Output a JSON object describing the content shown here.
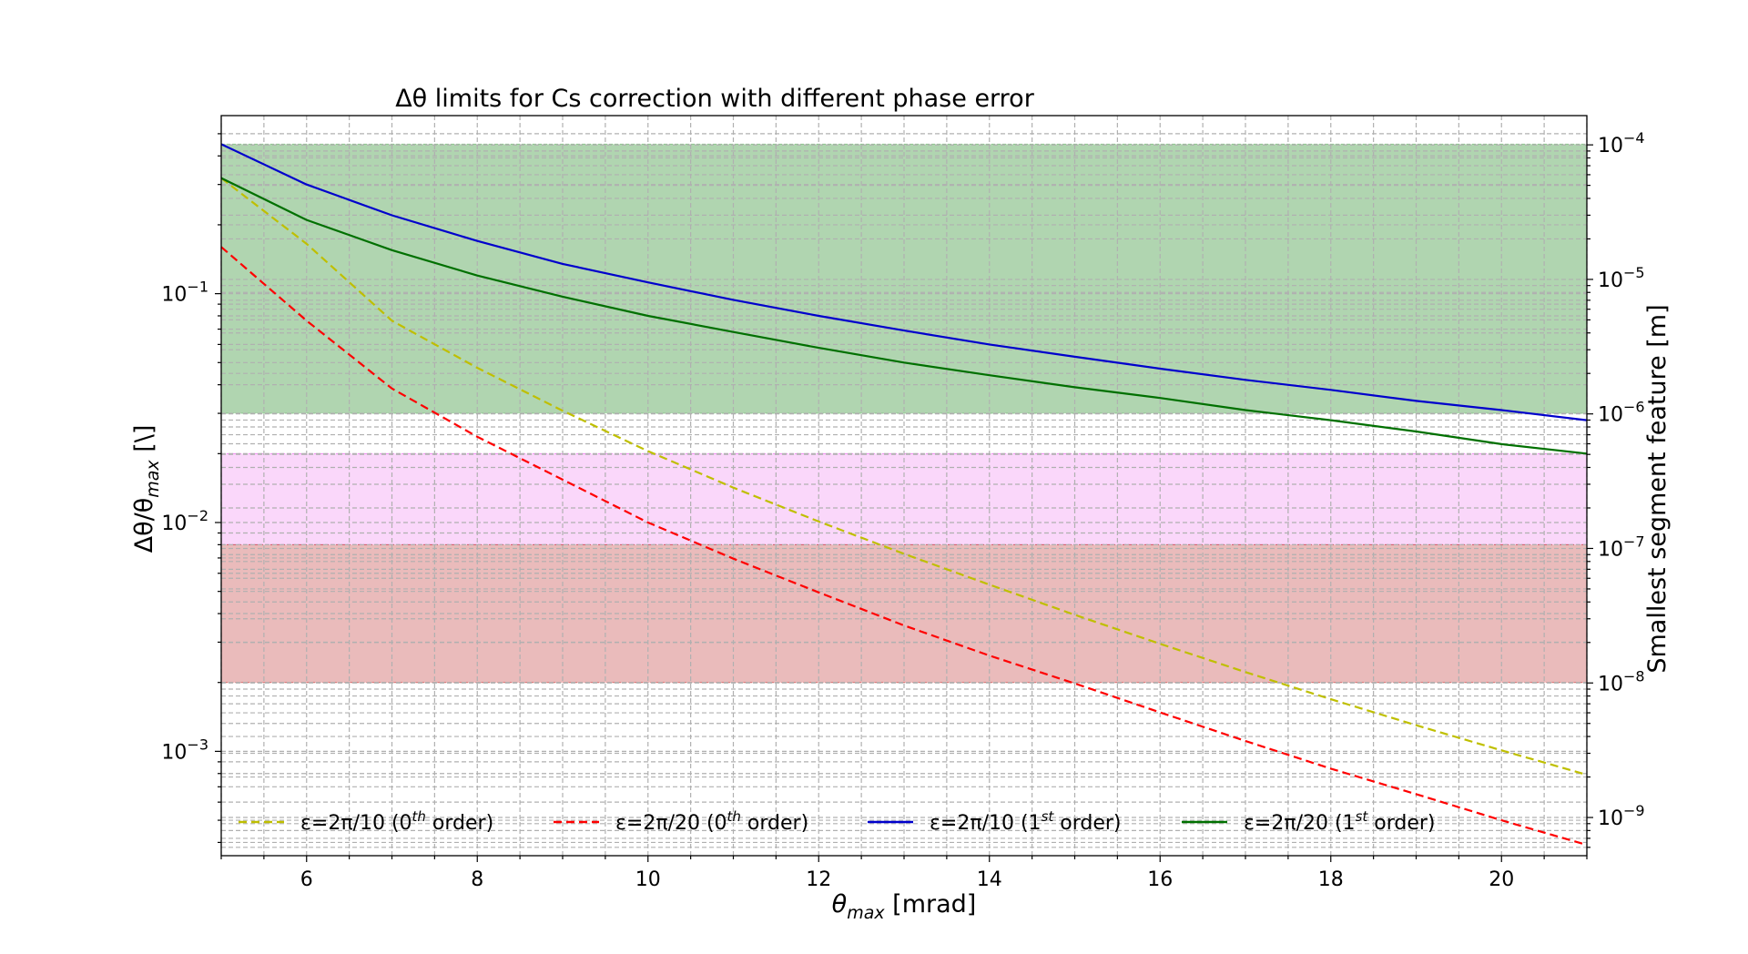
{
  "chart_data": {
    "type": "line",
    "title": "Δθ limits for Cs correction with different phase error",
    "xlabel": {
      "main": "θ",
      "sub": "max",
      "unit": " [mrad]"
    },
    "ylabel": {
      "main": "Δθ/θ",
      "sub": "max",
      "unit": " [\\]"
    },
    "y2label": "Smallest segment feature [m]",
    "xlim": [
      5,
      21
    ],
    "ylim": [
      0.00035,
      0.6
    ],
    "y2lim": [
      5.2e-10,
      0.000165
    ],
    "xscale": "linear",
    "yscale": "log",
    "y2scale": "log",
    "grid": true,
    "xticks": [
      6,
      8,
      10,
      12,
      14,
      16,
      18,
      20
    ],
    "xtick_labels": [
      "6",
      "8",
      "10",
      "12",
      "14",
      "16",
      "18",
      "20"
    ],
    "yticks": [
      0.001,
      0.01,
      0.1
    ],
    "ytick_labels": [
      {
        "base": "10",
        "exp": "−3"
      },
      {
        "base": "10",
        "exp": "−2"
      },
      {
        "base": "10",
        "exp": "−1"
      }
    ],
    "y2ticks": [
      1e-09,
      1e-08,
      1e-07,
      1e-06,
      1e-05,
      0.0001
    ],
    "y2tick_labels": [
      {
        "base": "10",
        "exp": "−9"
      },
      {
        "base": "10",
        "exp": "−8"
      },
      {
        "base": "10",
        "exp": "−7"
      },
      {
        "base": "10",
        "exp": "−6"
      },
      {
        "base": "10",
        "exp": "−5"
      },
      {
        "base": "10",
        "exp": "−4"
      }
    ],
    "bands": [
      {
        "y_from": 0.03,
        "y_to": 0.45,
        "color": "#86bf86",
        "opacity": 0.65
      },
      {
        "y_from": 0.008,
        "y_to": 0.02,
        "color": "#ee82ee",
        "opacity": 0.32
      },
      {
        "y_from": 0.002,
        "y_to": 0.008,
        "color": "#cd5c5c",
        "opacity": 0.42
      }
    ],
    "series": [
      {
        "name": "ε=2π/10 (0th order)",
        "legend": {
          "pre": "ε=2π/10 (0",
          "sup": "th",
          "post": " order)"
        },
        "color": "#bfbf00",
        "dashed": true,
        "x": [
          5,
          6,
          7,
          8,
          9,
          10,
          11,
          12,
          13,
          14,
          15,
          16,
          17,
          18,
          19,
          20,
          21
        ],
        "y": [
          0.32,
          0.165,
          0.0762,
          0.0474,
          0.0308,
          0.0205,
          0.0142,
          0.0101,
          0.0073,
          0.00535,
          0.00395,
          0.00295,
          0.00222,
          0.00169,
          0.0013,
          0.00101,
          0.00079
        ]
      },
      {
        "name": "ε=2π/20 (0th order)",
        "legend": {
          "pre": "ε=2π/20 (0",
          "sup": "th",
          "post": " order)"
        },
        "color": "#ff0000",
        "dashed": true,
        "x": [
          5,
          6,
          7,
          8,
          9,
          10,
          11,
          12,
          13,
          14,
          15,
          16,
          17,
          18,
          19,
          20,
          21
        ],
        "y": [
          0.16,
          0.0762,
          0.0385,
          0.0237,
          0.0154,
          0.01,
          0.00695,
          0.00495,
          0.00355,
          0.00262,
          0.00198,
          0.00148,
          0.00111,
          0.00084,
          0.00065,
          0.0005,
          0.00039
        ]
      },
      {
        "name": "ε=2π/10 (1st order)",
        "legend": {
          "pre": "ε=2π/10 (1",
          "sup": "st",
          "post": " order)"
        },
        "color": "#0000cc",
        "dashed": false,
        "x": [
          5,
          6,
          7,
          8,
          9,
          10,
          11,
          12,
          13,
          14,
          15,
          16,
          17,
          18,
          19,
          20,
          21
        ],
        "y": [
          0.45,
          0.3,
          0.22,
          0.17,
          0.135,
          0.112,
          0.094,
          0.08,
          0.069,
          0.06,
          0.053,
          0.047,
          0.042,
          0.038,
          0.034,
          0.031,
          0.028
        ]
      },
      {
        "name": "ε=2π/20 (1st order)",
        "legend": {
          "pre": "ε=2π/20 (1",
          "sup": "st",
          "post": " order)"
        },
        "color": "#007000",
        "dashed": false,
        "x": [
          5,
          6,
          7,
          8,
          9,
          10,
          11,
          12,
          13,
          14,
          15,
          16,
          17,
          18,
          19,
          20,
          21
        ],
        "y": [
          0.32,
          0.21,
          0.155,
          0.12,
          0.097,
          0.08,
          0.068,
          0.058,
          0.05,
          0.044,
          0.039,
          0.035,
          0.031,
          0.028,
          0.025,
          0.022,
          0.02
        ]
      }
    ],
    "legend_position": "lower-center"
  }
}
